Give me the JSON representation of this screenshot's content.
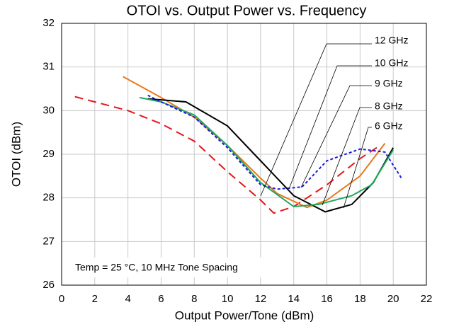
{
  "chart_data": {
    "type": "line",
    "title": "OTOI vs. Output Power vs. Frequency",
    "xlabel": "Output Power/Tone (dBm)",
    "ylabel": "OTOI (dBm)",
    "annotation": "Temp = 25 °C, 10 MHz Tone Spacing",
    "xlim": [
      0,
      22
    ],
    "xticks": [
      0,
      2,
      4,
      6,
      8,
      10,
      12,
      14,
      16,
      18,
      20,
      22
    ],
    "ylim": [
      26,
      32
    ],
    "yticks": [
      26,
      27,
      28,
      29,
      30,
      31,
      32
    ],
    "grid": true,
    "series": [
      {
        "name": "12 GHz",
        "color": "#e8141c",
        "dash": "12,7",
        "x": [
          0.8,
          2.5,
          4,
          6,
          8,
          10,
          12,
          12.8,
          14,
          16,
          18,
          19.2
        ],
        "values": [
          30.32,
          30.15,
          30.0,
          29.7,
          29.3,
          28.6,
          27.95,
          27.65,
          27.8,
          28.3,
          28.9,
          29.2
        ]
      },
      {
        "name": "10 GHz",
        "color": "#e8781e",
        "dash": "none",
        "x": [
          3.7,
          6,
          8,
          10,
          12,
          13,
          14.8,
          16,
          18,
          19.5
        ],
        "values": [
          30.78,
          30.3,
          29.85,
          29.2,
          28.45,
          28.1,
          27.78,
          27.95,
          28.5,
          29.25
        ]
      },
      {
        "name": "9 GHz",
        "color": "#000000",
        "dash": "none",
        "x": [
          5.2,
          7.5,
          10,
          12,
          14,
          15.9,
          17.5,
          18.8,
          20
        ],
        "values": [
          30.27,
          30.2,
          29.65,
          28.85,
          28.05,
          27.68,
          27.85,
          28.35,
          29.15
        ]
      },
      {
        "name": "8 GHz",
        "color": "#1ea860",
        "dash": "none",
        "x": [
          4.7,
          6,
          8,
          10,
          12,
          14,
          15.5,
          17.5,
          18.7,
          20
        ],
        "values": [
          30.3,
          30.2,
          29.9,
          29.2,
          28.35,
          27.8,
          27.85,
          28.05,
          28.3,
          29.1
        ]
      },
      {
        "name": "6 GHz",
        "color": "#1a1adc",
        "dash": "4,3",
        "x": [
          5.2,
          6,
          8,
          10,
          12,
          13,
          14.5,
          16,
          18,
          19.5,
          20.5
        ],
        "values": [
          30.35,
          30.2,
          29.85,
          29.15,
          28.3,
          28.2,
          28.25,
          28.85,
          29.12,
          29.05,
          28.45
        ]
      }
    ]
  }
}
